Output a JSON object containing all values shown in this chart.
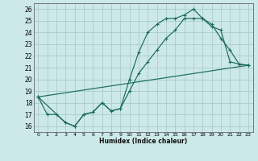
{
  "xlabel": "Humidex (Indice chaleur)",
  "bg_color": "#cce8e8",
  "grid_color": "#aacccc",
  "line_color": "#1a6b5a",
  "xlim": [
    -0.5,
    23.5
  ],
  "ylim": [
    15.5,
    26.5
  ],
  "xticks": [
    0,
    1,
    2,
    3,
    4,
    5,
    6,
    7,
    8,
    9,
    10,
    11,
    12,
    13,
    14,
    15,
    16,
    17,
    18,
    19,
    20,
    21,
    22,
    23
  ],
  "yticks": [
    16,
    17,
    18,
    19,
    20,
    21,
    22,
    23,
    24,
    25,
    26
  ],
  "series1_x": [
    0,
    1,
    2,
    3,
    4,
    5,
    6,
    7,
    8,
    9,
    10,
    11,
    12,
    13,
    14,
    15,
    16,
    17,
    18,
    19,
    20,
    21,
    22,
    23
  ],
  "series1_y": [
    18.5,
    17.0,
    17.0,
    16.3,
    16.0,
    17.0,
    17.2,
    18.0,
    17.3,
    17.5,
    20.0,
    22.3,
    24.0,
    24.7,
    25.2,
    25.2,
    25.5,
    26.0,
    25.2,
    24.5,
    24.2,
    21.5,
    21.3,
    21.2
  ],
  "series2_x": [
    0,
    3,
    4,
    5,
    6,
    7,
    8,
    9,
    10,
    11,
    12,
    13,
    14,
    15,
    16,
    17,
    18,
    19,
    20,
    21,
    22,
    23
  ],
  "series2_y": [
    18.5,
    16.3,
    16.0,
    17.0,
    17.2,
    18.0,
    17.3,
    17.5,
    19.0,
    20.5,
    21.5,
    22.5,
    23.5,
    24.2,
    25.2,
    25.2,
    25.2,
    24.7,
    23.5,
    22.5,
    21.3,
    21.2
  ],
  "series3_x": [
    0,
    23
  ],
  "series3_y": [
    18.5,
    21.2
  ]
}
